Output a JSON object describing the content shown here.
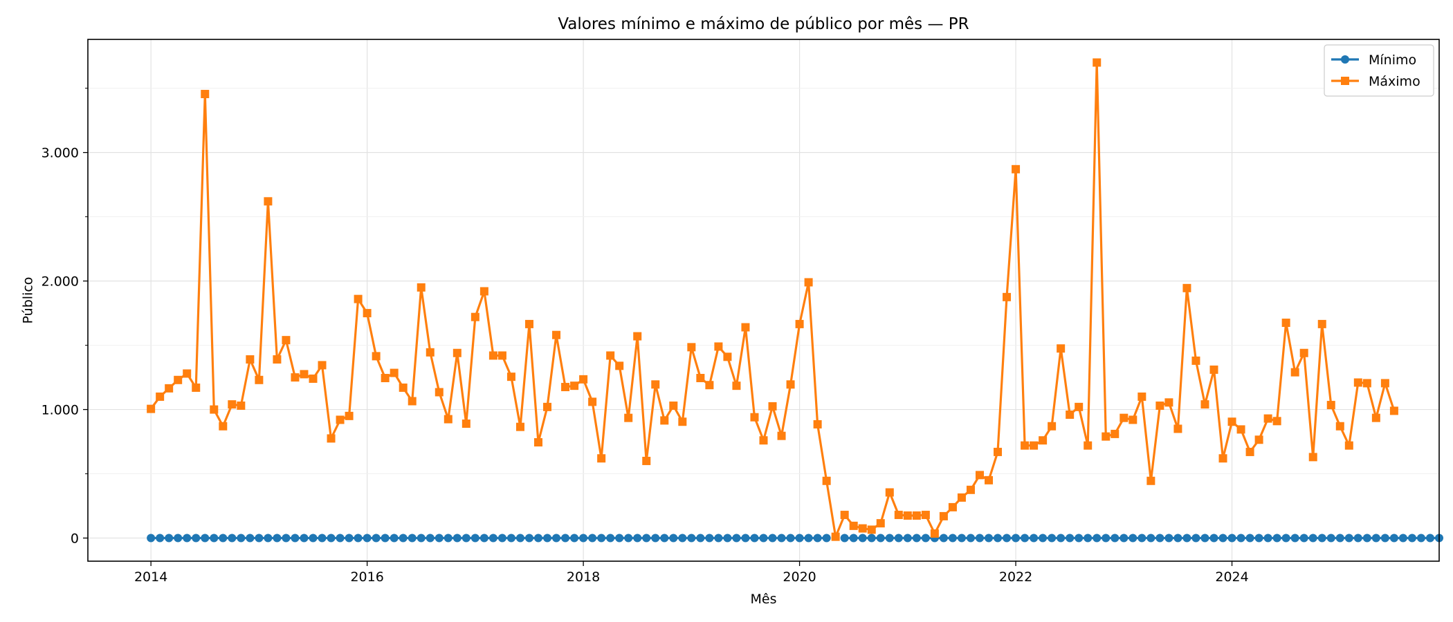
{
  "chart_data": {
    "type": "line",
    "title": "Valores mínimo e máximo de público por mês — PR",
    "xlabel": "Mês",
    "ylabel": "Público",
    "x_start": "2014-01",
    "xlim": [
      "2013-06",
      "2025-12"
    ],
    "ylim": [
      -180,
      3880
    ],
    "x_ticks": [
      {
        "value": "2014-01",
        "label": "2014"
      },
      {
        "value": "2016-01",
        "label": "2016"
      },
      {
        "value": "2018-01",
        "label": "2018"
      },
      {
        "value": "2020-01",
        "label": "2020"
      },
      {
        "value": "2022-01",
        "label": "2022"
      },
      {
        "value": "2024-01",
        "label": "2024"
      }
    ],
    "y_ticks": [
      {
        "value": 0,
        "label": "0"
      },
      {
        "value": 1000,
        "label": "1.000"
      },
      {
        "value": 2000,
        "label": "2.000"
      },
      {
        "value": 3000,
        "label": "3.000"
      }
    ],
    "y_minor_ticks": [
      500,
      1500,
      2500,
      3500
    ],
    "grid": true,
    "legend": {
      "position": "top-right"
    },
    "series": [
      {
        "name": "Mínimo",
        "color": "#1f77b4",
        "marker": "circle",
        "missing_index": 76,
        "values": [
          0,
          0,
          0,
          0,
          0,
          0,
          0,
          0,
          0,
          0,
          0,
          0,
          0,
          0,
          0,
          0,
          0,
          0,
          0,
          0,
          0,
          0,
          0,
          0,
          0,
          0,
          0,
          0,
          0,
          0,
          0,
          0,
          0,
          0,
          0,
          0,
          0,
          0,
          0,
          0,
          0,
          0,
          0,
          0,
          0,
          0,
          0,
          0,
          0,
          0,
          0,
          0,
          0,
          0,
          0,
          0,
          0,
          0,
          0,
          0,
          0,
          0,
          0,
          0,
          0,
          0,
          0,
          0,
          0,
          0,
          0,
          0,
          0,
          0,
          0,
          0,
          null,
          0,
          0,
          0,
          0,
          0,
          0,
          0,
          0,
          0,
          0,
          0,
          0,
          0,
          0,
          0,
          0,
          0,
          0,
          0,
          0,
          0,
          0,
          0,
          0,
          0,
          0,
          0,
          0,
          0,
          0,
          0,
          0,
          0,
          0,
          0,
          0,
          0,
          0,
          0,
          0,
          0,
          0,
          0,
          0,
          0,
          0,
          0,
          0,
          0,
          0,
          0,
          0,
          0,
          0,
          0,
          0,
          0,
          0,
          0,
          0,
          0,
          0,
          0,
          0,
          0,
          0,
          0
        ]
      },
      {
        "name": "Máximo",
        "color": "#ff7f0e",
        "marker": "square",
        "values": [
          1005,
          1100,
          1165,
          1230,
          1280,
          1170,
          3455,
          1000,
          870,
          1040,
          1030,
          1390,
          1230,
          2620,
          1390,
          1540,
          1250,
          1275,
          1240,
          1345,
          775,
          920,
          950,
          1860,
          1750,
          1415,
          1245,
          1285,
          1170,
          1065,
          1950,
          1445,
          1135,
          925,
          1440,
          890,
          1720,
          1920,
          1420,
          1420,
          1255,
          865,
          1665,
          745,
          1020,
          1580,
          1175,
          1185,
          1235,
          1060,
          620,
          1420,
          1340,
          935,
          1570,
          600,
          1195,
          915,
          1030,
          905,
          1485,
          1245,
          1190,
          1490,
          1410,
          1185,
          1640,
          940,
          760,
          1025,
          795,
          1195,
          1665,
          1990,
          885,
          445,
          10,
          180,
          95,
          75,
          65,
          115,
          355,
          180,
          175,
          175,
          180,
          35,
          170,
          240,
          315,
          375,
          490,
          450,
          670,
          1875,
          2870,
          720,
          720,
          760,
          870,
          1475,
          960,
          1020,
          720,
          3700,
          790,
          810,
          935,
          920,
          1100,
          445,
          1030,
          1055,
          850,
          1945,
          1380,
          1040,
          1310,
          620,
          905,
          845,
          670,
          765,
          930,
          910,
          1675,
          1290,
          1440,
          630,
          1665,
          1035,
          870,
          720,
          1210,
          1205,
          935,
          1205,
          990
        ]
      }
    ]
  }
}
